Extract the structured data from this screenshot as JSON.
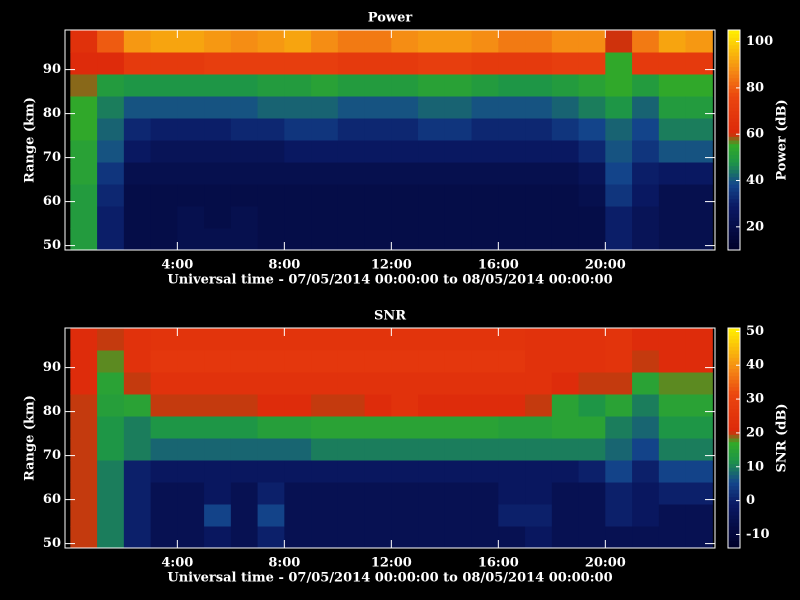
{
  "chart_data": [
    {
      "type": "heatmap",
      "title": "Power",
      "xlabel": "Universal time - 07/05/2014 00:00:00 to 08/05/2014 00:00:00",
      "ylabel": "Range (km)",
      "colorbar_label": "Power (dB)",
      "x_bins": [
        0,
        1,
        2,
        3,
        4,
        5,
        6,
        7,
        8,
        9,
        10,
        11,
        12,
        13,
        14,
        15,
        16,
        17,
        18,
        19,
        20,
        21,
        22,
        23,
        24
      ],
      "y_bins": [
        49,
        54,
        59,
        64,
        69,
        74,
        79,
        84,
        89,
        94,
        99
      ],
      "xlim": [
        -0.2,
        24.1
      ],
      "ylim": [
        49,
        99
      ],
      "clim": [
        10,
        105
      ],
      "xticks": [
        {
          "value": 4,
          "label": "4:00"
        },
        {
          "value": 8,
          "label": "8:00"
        },
        {
          "value": 12,
          "label": "12:00"
        },
        {
          "value": 16,
          "label": "16:00"
        },
        {
          "value": 20,
          "label": "20:00"
        }
      ],
      "yticks": [
        50,
        60,
        70,
        80,
        90
      ],
      "cticks": [
        20,
        40,
        60,
        80,
        100
      ],
      "values": [
        [
          50,
          30,
          20,
          20,
          22,
          22,
          22,
          20,
          20,
          20,
          20,
          20,
          20,
          20,
          20,
          20,
          20,
          20,
          20,
          20,
          30,
          25,
          22,
          22
        ],
        [
          50,
          30,
          20,
          20,
          22,
          20,
          22,
          20,
          20,
          20,
          20,
          20,
          20,
          20,
          20,
          20,
          20,
          20,
          20,
          20,
          30,
          25,
          22,
          22
        ],
        [
          50,
          32,
          20,
          20,
          20,
          20,
          20,
          20,
          20,
          20,
          20,
          20,
          20,
          20,
          20,
          20,
          20,
          20,
          20,
          22,
          35,
          28,
          22,
          22
        ],
        [
          52,
          35,
          22,
          22,
          22,
          22,
          22,
          22,
          22,
          22,
          22,
          22,
          22,
          22,
          22,
          22,
          22,
          22,
          22,
          25,
          38,
          30,
          28,
          28
        ],
        [
          52,
          40,
          28,
          25,
          25,
          25,
          25,
          25,
          28,
          28,
          28,
          28,
          28,
          28,
          28,
          28,
          28,
          28,
          28,
          32,
          40,
          35,
          40,
          40
        ],
        [
          55,
          42,
          32,
          30,
          30,
          30,
          32,
          32,
          35,
          35,
          32,
          32,
          32,
          35,
          35,
          32,
          32,
          32,
          35,
          38,
          42,
          38,
          45,
          45
        ],
        [
          55,
          45,
          40,
          40,
          40,
          40,
          40,
          42,
          42,
          42,
          40,
          40,
          40,
          42,
          42,
          40,
          40,
          40,
          42,
          45,
          48,
          42,
          50,
          50
        ],
        [
          58,
          50,
          48,
          48,
          48,
          48,
          48,
          50,
          50,
          52,
          50,
          50,
          50,
          52,
          52,
          50,
          48,
          48,
          50,
          52,
          55,
          50,
          55,
          55
        ],
        [
          62,
          62,
          70,
          70,
          70,
          72,
          72,
          72,
          72,
          72,
          70,
          70,
          70,
          72,
          72,
          70,
          70,
          70,
          72,
          72,
          55,
          70,
          70,
          70
        ],
        [
          65,
          80,
          90,
          92,
          92,
          90,
          88,
          90,
          92,
          88,
          85,
          85,
          88,
          90,
          90,
          88,
          85,
          85,
          88,
          88,
          60,
          85,
          92,
          90
        ]
      ]
    },
    {
      "type": "heatmap",
      "title": "SNR",
      "xlabel": "Universal time - 07/05/2014 00:00:00 to 08/05/2014 00:00:00",
      "ylabel": "Range (km)",
      "colorbar_label": "SNR (dB)",
      "x_bins": [
        0,
        1,
        2,
        3,
        4,
        5,
        6,
        7,
        8,
        9,
        10,
        11,
        12,
        13,
        14,
        15,
        16,
        17,
        18,
        19,
        20,
        21,
        22,
        23,
        24
      ],
      "y_bins": [
        49,
        54,
        59,
        64,
        69,
        74,
        79,
        84,
        89,
        94,
        99
      ],
      "xlim": [
        -0.2,
        24.1
      ],
      "ylim": [
        49,
        99
      ],
      "clim": [
        -14,
        51
      ],
      "xticks": [
        {
          "value": 4,
          "label": "4:00"
        },
        {
          "value": 8,
          "label": "8:00"
        },
        {
          "value": 12,
          "label": "12:00"
        },
        {
          "value": 16,
          "label": "16:00"
        },
        {
          "value": 20,
          "label": "20:00"
        }
      ],
      "yticks": [
        50,
        60,
        70,
        80,
        90
      ],
      "cticks": [
        -10,
        0,
        10,
        20,
        30,
        40,
        50
      ],
      "values": [
        [
          20,
          10,
          0,
          -5,
          -5,
          -2,
          -5,
          0,
          -5,
          -5,
          -5,
          -5,
          -5,
          -5,
          -5,
          -5,
          -5,
          -2,
          -5,
          -5,
          -5,
          -5,
          -5,
          -5
        ],
        [
          20,
          10,
          0,
          -5,
          -5,
          5,
          -5,
          5,
          -5,
          -5,
          -5,
          -5,
          -5,
          -5,
          -5,
          -5,
          0,
          0,
          -5,
          -5,
          0,
          -2,
          -5,
          -5
        ],
        [
          20,
          10,
          0,
          -5,
          -5,
          -2,
          -5,
          0,
          -5,
          -5,
          -5,
          -5,
          -5,
          -5,
          -5,
          -5,
          -2,
          -2,
          -5,
          -5,
          0,
          -2,
          0,
          0
        ],
        [
          20,
          10,
          0,
          -2,
          -2,
          -2,
          -2,
          -2,
          -2,
          -2,
          -2,
          -2,
          -2,
          -2,
          -2,
          -2,
          -2,
          -2,
          -2,
          0,
          5,
          0,
          5,
          5
        ],
        [
          20,
          12,
          10,
          8,
          8,
          8,
          8,
          8,
          8,
          10,
          10,
          10,
          10,
          10,
          10,
          10,
          10,
          10,
          10,
          10,
          8,
          5,
          10,
          10
        ],
        [
          20,
          12,
          10,
          12,
          12,
          12,
          12,
          14,
          14,
          15,
          15,
          15,
          15,
          15,
          15,
          15,
          14,
          14,
          15,
          15,
          10,
          8,
          12,
          12
        ],
        [
          20,
          14,
          15,
          20,
          20,
          20,
          20,
          22,
          22,
          20,
          20,
          22,
          24,
          22,
          22,
          22,
          22,
          20,
          15,
          12,
          15,
          10,
          15,
          15
        ],
        [
          22,
          15,
          20,
          24,
          24,
          24,
          24,
          24,
          24,
          24,
          24,
          24,
          24,
          24,
          24,
          24,
          24,
          24,
          22,
          20,
          20,
          15,
          18,
          18
        ],
        [
          22,
          18,
          24,
          26,
          26,
          26,
          26,
          26,
          26,
          26,
          26,
          26,
          26,
          26,
          26,
          26,
          26,
          24,
          24,
          24,
          25,
          20,
          22,
          22
        ],
        [
          22,
          20,
          24,
          25,
          25,
          25,
          25,
          25,
          25,
          25,
          25,
          25,
          25,
          25,
          25,
          25,
          25,
          24,
          24,
          24,
          25,
          22,
          22,
          22
        ]
      ]
    }
  ]
}
